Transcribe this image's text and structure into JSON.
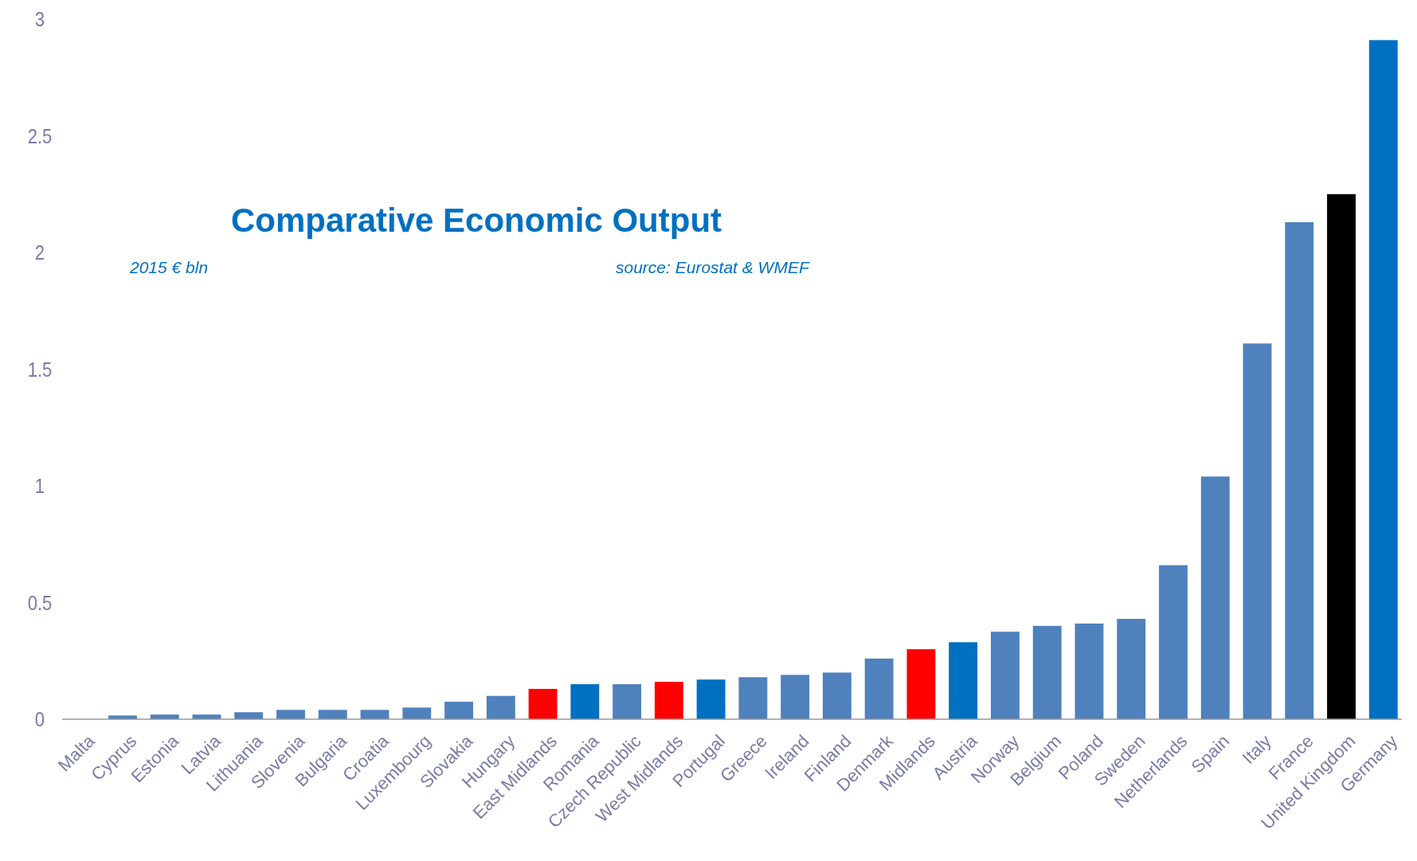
{
  "chart_data": {
    "type": "bar",
    "title": "Comparative Economic Output",
    "subtitle": "2015 € bln",
    "annotations": [
      "source: Eurostat & WMEF"
    ],
    "categories": [
      "Malta",
      "Cyprus",
      "Estonia",
      "Latvia",
      "Lithuania",
      "Slovenia",
      "Bulgaria",
      "Croatia",
      "Luxembourg",
      "Slovakia",
      "Hungary",
      "East Midlands",
      "Romania",
      "Czech Republic",
      "West Midlands",
      "Portugal",
      "Greece",
      "Ireland",
      "Finland",
      "Denmark",
      "Midlands",
      "Austria",
      "Norway",
      "Belgium",
      "Poland",
      "Sweden",
      "Netherlands",
      "Spain",
      "Italy",
      "France",
      "United Kingdom",
      "Germany"
    ],
    "values": [
      null,
      0.016,
      0.02,
      0.02,
      0.03,
      0.04,
      0.04,
      0.04,
      0.05,
      0.075,
      0.1,
      0.13,
      0.15,
      0.15,
      0.16,
      0.17,
      0.18,
      0.19,
      0.2,
      0.26,
      0.3,
      0.33,
      0.375,
      0.4,
      0.41,
      0.43,
      0.66,
      1.04,
      1.61,
      2.13,
      2.25,
      2.91
    ],
    "colors": [
      null,
      "#4f81bd",
      "#4f81bd",
      "#4f81bd",
      "#4f81bd",
      "#4f81bd",
      "#4f81bd",
      "#4f81bd",
      "#4f81bd",
      "#4f81bd",
      "#4f81bd",
      "#ff0000",
      "#0070c0",
      "#4f81bd",
      "#ff0000",
      "#0070c0",
      "#4f81bd",
      "#4f81bd",
      "#4f81bd",
      "#4f81bd",
      "#ff0000",
      "#0070c0",
      "#4f81bd",
      "#4f81bd",
      "#4f81bd",
      "#4f81bd",
      "#4f81bd",
      "#4f81bd",
      "#4f81bd",
      "#4f81bd",
      "#000000",
      "#0070c0"
    ],
    "ylim": [
      0,
      3
    ],
    "yticks": [
      0,
      0.5,
      1,
      1.5,
      2,
      2.5,
      3
    ],
    "grid": false
  }
}
